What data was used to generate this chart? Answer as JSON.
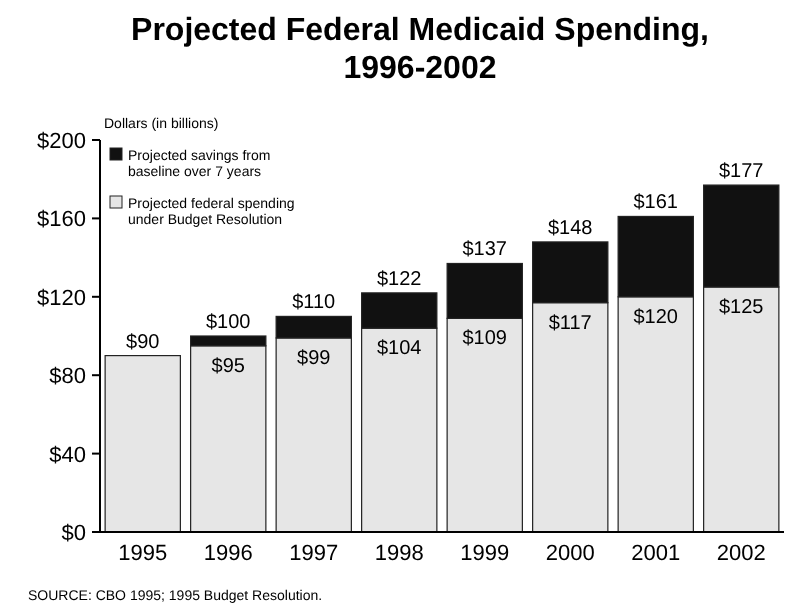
{
  "chart_data": {
    "type": "bar",
    "title": "Projected Federal Medicaid Spending,\n1996-2002",
    "ylabel": "Dollars (in billions)",
    "categories": [
      "1995",
      "1996",
      "1997",
      "1998",
      "1999",
      "2000",
      "2001",
      "2002"
    ],
    "stacked": true,
    "series": [
      {
        "name": "Projected federal spending under Budget Resolution",
        "color": "#e6e6e6",
        "values": [
          90,
          95,
          99,
          104,
          109,
          117,
          120,
          125
        ],
        "value_labels": [
          null,
          "$95",
          "$99",
          "$104",
          "$109",
          "$117",
          "$120",
          "$125"
        ]
      },
      {
        "name": "Projected savings from baseline over 7 years",
        "color": "#111111",
        "values": [
          null,
          5,
          11,
          18,
          28,
          31,
          41,
          52
        ]
      }
    ],
    "totals": [
      "$90",
      "$100",
      "$110",
      "$122",
      "$137",
      "$148",
      "$161",
      "$177"
    ],
    "ylim": [
      0,
      200
    ],
    "yticks": [
      {
        "value": 0,
        "label": "$0"
      },
      {
        "value": 40,
        "label": "$40"
      },
      {
        "value": 80,
        "label": "$80"
      },
      {
        "value": 120,
        "label": "$120"
      },
      {
        "value": 160,
        "label": "$160"
      },
      {
        "value": 200,
        "label": "$200"
      }
    ],
    "legend": "top left",
    "annotations": [
      "SOURCE: CBO 1995; 1995 Budget Resolution."
    ]
  }
}
